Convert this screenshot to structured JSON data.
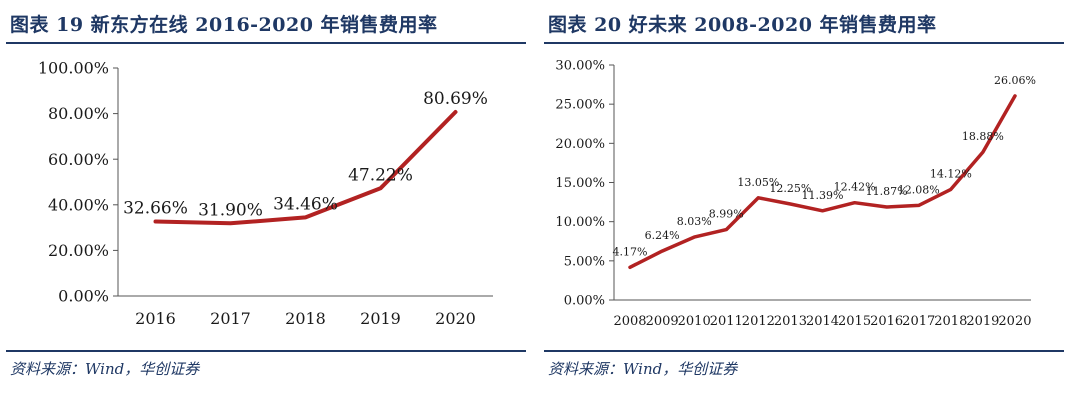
{
  "left": {
    "title": "图表 19  新东方在线 2016-2020 年销售费用率",
    "source": "资料来源：Wind，华创证券"
  },
  "right": {
    "title": "图表 20  好未来 2008-2020 年销售费用率",
    "source": "资料来源：Wind，华创证券"
  },
  "colors": {
    "line": "#b22222",
    "rule": "#1f3864",
    "axis": "#555555"
  },
  "chart_data": [
    {
      "type": "line",
      "categories": [
        "2016",
        "2017",
        "2018",
        "2019",
        "2020"
      ],
      "values": [
        32.66,
        31.9,
        34.46,
        47.22,
        80.69
      ],
      "labels": [
        "32.66%",
        "31.90%",
        "34.46%",
        "47.22%",
        "80.69%"
      ],
      "yticks": [
        "0.00%",
        "20.00%",
        "40.00%",
        "60.00%",
        "80.00%",
        "100.00%"
      ],
      "ylim": [
        0,
        100
      ],
      "grid": false
    },
    {
      "type": "line",
      "categories": [
        "2008",
        "2009",
        "2010",
        "2011",
        "2012",
        "2013",
        "2014",
        "2015",
        "2016",
        "2017",
        "2018",
        "2019",
        "2020"
      ],
      "values": [
        4.17,
        6.24,
        8.03,
        8.99,
        13.05,
        12.25,
        11.39,
        12.42,
        11.87,
        12.08,
        14.12,
        18.88,
        26.06
      ],
      "labels": [
        "4.17%",
        "6.24%",
        "8.03%",
        "8.99%",
        "13.05%",
        "12.25%",
        "11.39%",
        "12.42%",
        "11.87%",
        "12.08%",
        "14.12%",
        "18.88%",
        "26.06%"
      ],
      "yticks": [
        "0.00%",
        "5.00%",
        "10.00%",
        "15.00%",
        "20.00%",
        "25.00%",
        "30.00%"
      ],
      "ylim": [
        0,
        30
      ],
      "grid": false
    }
  ]
}
